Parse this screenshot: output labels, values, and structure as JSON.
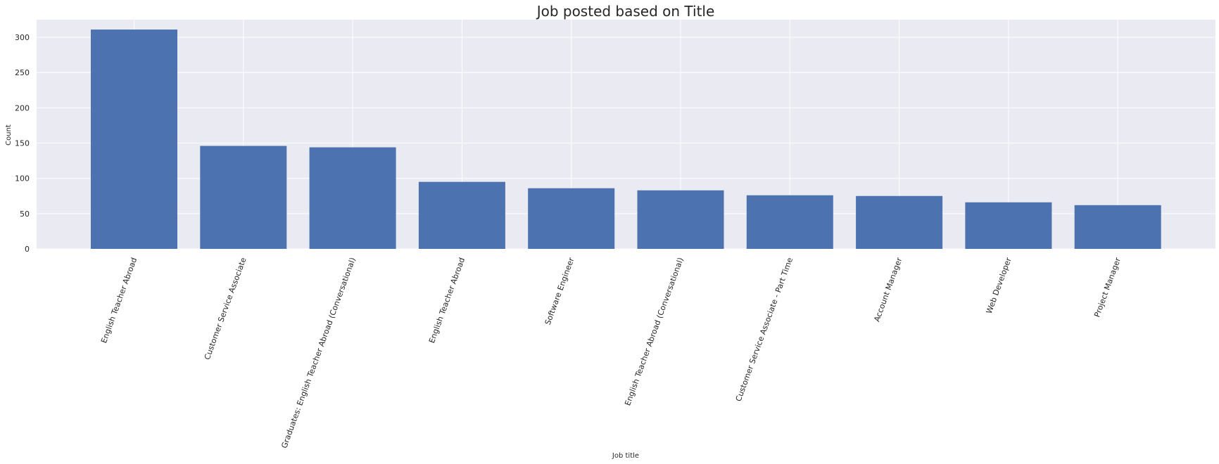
{
  "chart_data": {
    "type": "bar",
    "title": "Job posted based on Title",
    "xlabel": "Job title",
    "ylabel": "Count",
    "categories": [
      "English Teacher Abroad",
      "Customer Service Associate",
      "Graduates: English Teacher Abroad (Conversational)",
      "English Teacher Abroad",
      "Software Engineer",
      "English Teacher Abroad (Conversational)",
      "Customer Service Associate - Part Time",
      "Account Manager",
      "Web Developer",
      "Project Manager"
    ],
    "values": [
      311,
      146,
      144,
      95,
      86,
      83,
      76,
      75,
      66,
      62
    ],
    "ylim": [
      0,
      325
    ],
    "yticks": [
      "0",
      "50",
      "100",
      "150",
      "200",
      "250",
      "300"
    ],
    "xtick_rotation_deg": 70,
    "grid": true,
    "bar_color": "#4c72b0",
    "background_color": "#eaeaf2",
    "grid_color": "#ffffff"
  }
}
